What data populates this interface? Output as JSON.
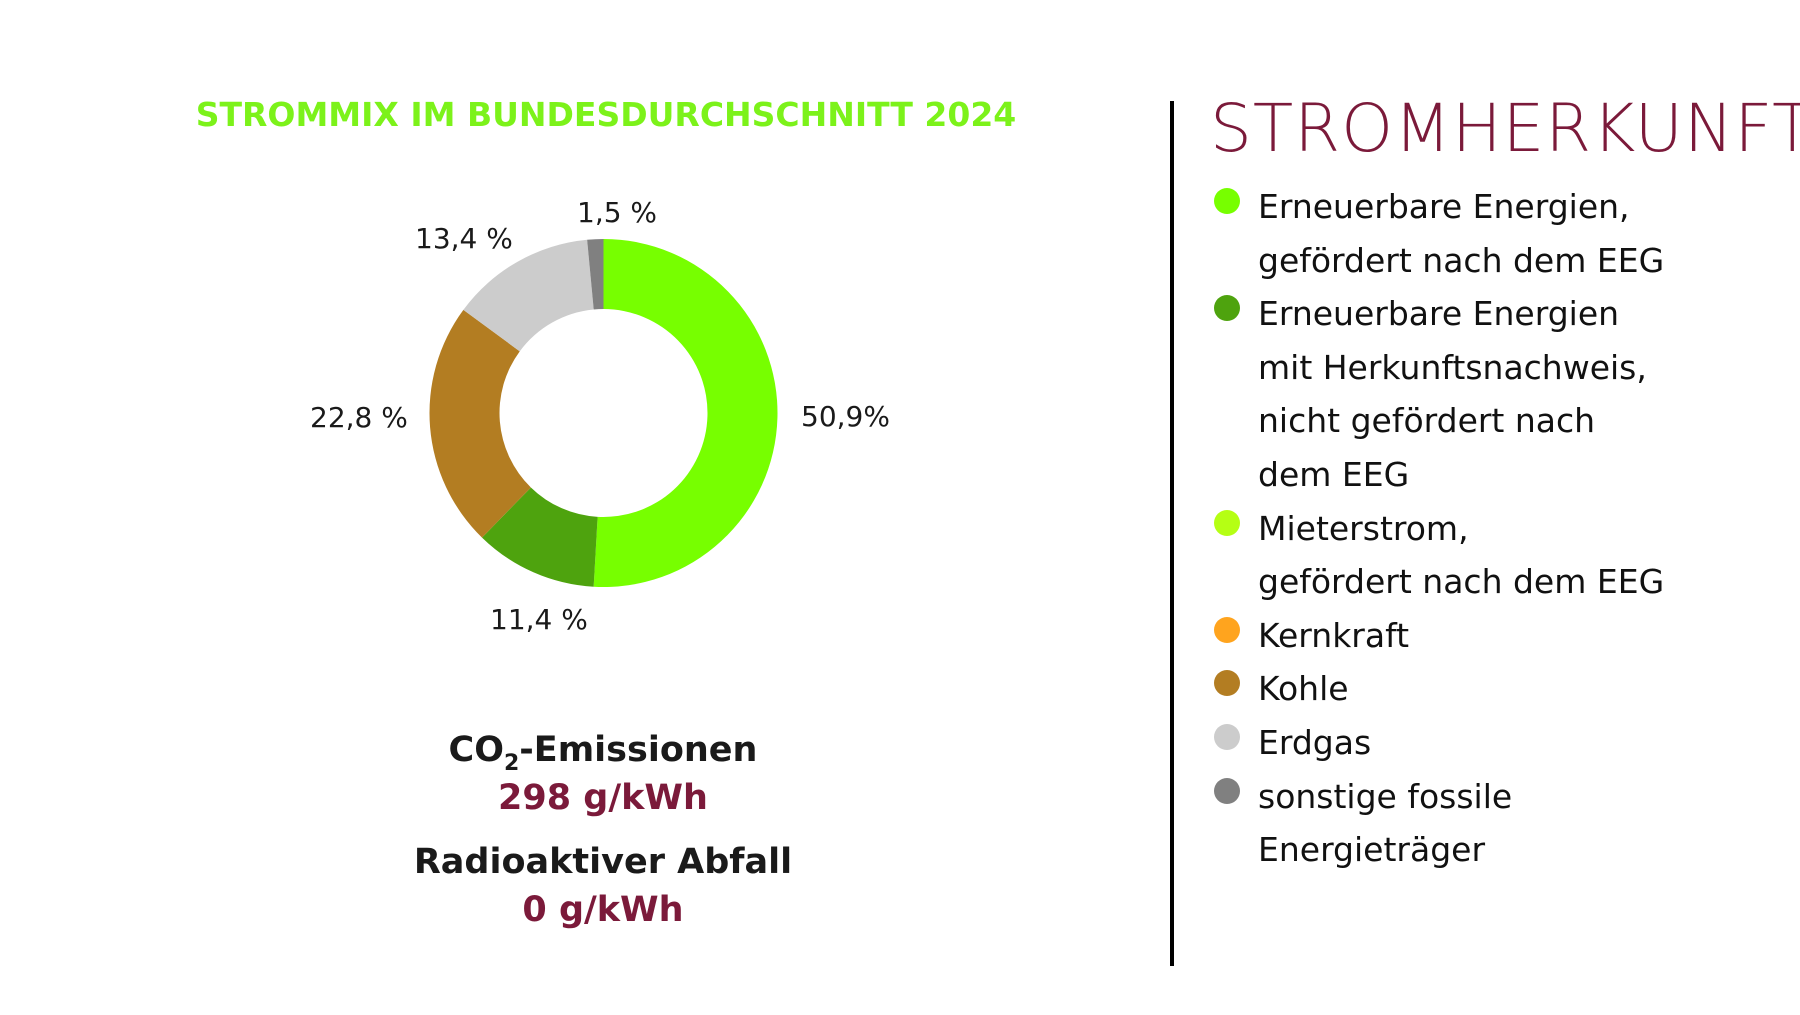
{
  "chart_title": "STROMMIX IM BUNDESDURCHSCHNITT 2024",
  "colors": {
    "title_green": "#7CF21A",
    "accent_red": "#7B1A3A",
    "text": "#1a1a1a",
    "divider": "#000000"
  },
  "chart_data": {
    "type": "pie",
    "variant": "donut",
    "title": "STROMMIX IM BUNDESDURCHSCHNITT 2024",
    "categories": [
      "Erneuerbare Energien, gefördert nach dem EEG",
      "Erneuerbare Energien mit Herkunftsnachweis, nicht gefördert nach dem EEG",
      "Mieterstrom, gefördert nach dem EEG",
      "Kernkraft",
      "Kohle",
      "Erdgas",
      "sonstige fossile Energieträger"
    ],
    "values": [
      50.9,
      11.4,
      0,
      0,
      22.8,
      13.4,
      1.5
    ],
    "unit": "%",
    "slices": [
      {
        "name": "Erneuerbare Energien, gefördert nach dem EEG",
        "value": 50.9,
        "label": "50,9%",
        "color": "#77FF00"
      },
      {
        "name": "Erneuerbare Energien mit Herkunftsnachweis, nicht gefördert nach dem EEG",
        "value": 11.4,
        "label": "11,4 %",
        "color": "#4EA30E"
      },
      {
        "name": "Kohle",
        "value": 22.8,
        "label": "22,8 %",
        "color": "#B37D22"
      },
      {
        "name": "Erdgas",
        "value": 13.4,
        "label": "13,4 %",
        "color": "#CCCCCC"
      },
      {
        "name": "sonstige fossile Energieträger",
        "value": 1.5,
        "label": "1,5 %",
        "color": "#808080"
      }
    ],
    "start_angle_deg": 0,
    "direction": "clockwise",
    "legend_position": "right"
  },
  "slice_labels": {
    "erneuerbar_eeg": "50,9%",
    "erneuerbar_hkn": "11,4 %",
    "kohle": "22,8 %",
    "erdgas": "13,4 %",
    "sonstige": "1,5 %"
  },
  "metrics": {
    "co2_label_prefix": "CO",
    "co2_label_sub": "2",
    "co2_label_suffix": "-Emissionen",
    "co2_value": "298 g/kWh",
    "radioactive_label": "Radioaktiver Abfall",
    "radioactive_value": "0 g/kWh"
  },
  "legend": {
    "title": "STROMHERKUNFT",
    "items": [
      {
        "lines": [
          "Erneuerbare Energien,",
          "gefördert nach dem EEG"
        ],
        "color": "#77FF00"
      },
      {
        "lines": [
          "Erneuerbare Energien",
          "mit Herkunftsnachweis,",
          "nicht gefördert nach",
          "dem EEG"
        ],
        "color": "#4EA30E"
      },
      {
        "lines": [
          "Mieterstrom,",
          "gefördert nach dem EEG"
        ],
        "color": "#B5FF14"
      },
      {
        "lines": [
          "Kernkraft"
        ],
        "color": "#FFA41E"
      },
      {
        "lines": [
          "Kohle"
        ],
        "color": "#B37D22"
      },
      {
        "lines": [
          "Erdgas"
        ],
        "color": "#CCCCCC"
      },
      {
        "lines": [
          "sonstige fossile",
          "Energieträger"
        ],
        "color": "#808080"
      }
    ]
  }
}
